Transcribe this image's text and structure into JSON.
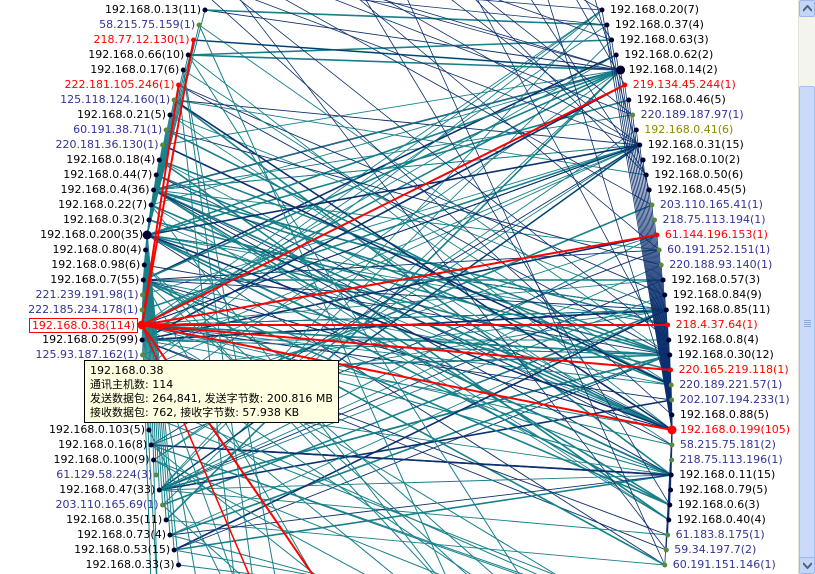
{
  "colors": {
    "edge": "#17808a",
    "edge_dark": "#0c2f6e",
    "highlight": "#ff0000",
    "label_local": "#000000",
    "label_remote": "#333399",
    "label_alert": "#ff0000",
    "label_olive": "#8a8a00",
    "node_dark": "#000033",
    "node_green": "#5a8a3a"
  },
  "left_nodes": [
    {
      "label": "192.168.0.13(11)",
      "color": "label_local"
    },
    {
      "label": "58.215.75.159(1)",
      "color": "label_remote"
    },
    {
      "label": "218.77.12.130(1)",
      "color": "label_alert"
    },
    {
      "label": "192.168.0.66(10)",
      "color": "label_local"
    },
    {
      "label": "192.168.0.17(6)",
      "color": "label_local"
    },
    {
      "label": "222.181.105.246(1)",
      "color": "label_alert"
    },
    {
      "label": "125.118.124.160(1)",
      "color": "label_remote"
    },
    {
      "label": "192.168.0.21(5)",
      "color": "label_local"
    },
    {
      "label": "60.191.38.71(1)",
      "color": "label_remote"
    },
    {
      "label": "220.181.36.130(1)",
      "color": "label_remote"
    },
    {
      "label": "192.168.0.18(4)",
      "color": "label_local"
    },
    {
      "label": "192.168.0.44(7)",
      "color": "label_local"
    },
    {
      "label": "192.168.0.4(36)",
      "color": "label_local"
    },
    {
      "label": "192.168.0.22(7)",
      "color": "label_local"
    },
    {
      "label": "192.168.0.3(2)",
      "color": "label_local"
    },
    {
      "label": "192.168.0.200(35)",
      "color": "label_local"
    },
    {
      "label": "192.168.0.80(4)",
      "color": "label_local"
    },
    {
      "label": "192.168.0.98(6)",
      "color": "label_local"
    },
    {
      "label": "192.168.0.7(55)",
      "color": "label_local"
    },
    {
      "label": "221.239.191.98(1)",
      "color": "label_remote"
    },
    {
      "label": "222.185.234.178(1)",
      "color": "label_remote"
    },
    {
      "label": "192.168.0.38(114)",
      "color": "label_alert",
      "boxed": true
    },
    {
      "label": "192.168.0.25(99)",
      "color": "label_local"
    },
    {
      "label": "125.93.187.162(1)",
      "color": "label_remote"
    },
    {
      "label": "222.73.1",
      "color": "label_remote"
    },
    {
      "label": "192.168.0",
      "color": "label_local"
    },
    {
      "label": "60.181.8",
      "color": "label_remote"
    },
    {
      "label": "218.92.18",
      "color": "label_remote"
    },
    {
      "label": "192.168.0.103(5)",
      "color": "label_local"
    },
    {
      "label": "192.168.0.16(8)",
      "color": "label_local"
    },
    {
      "label": "192.168.0.100(9)",
      "color": "label_local"
    },
    {
      "label": "61.129.58.224(3)",
      "color": "label_remote"
    },
    {
      "label": "192.168.0.47(33)",
      "color": "label_local"
    },
    {
      "label": "203.110.165.69(1)",
      "color": "label_remote"
    },
    {
      "label": "192.168.0.35(11)",
      "color": "label_local"
    },
    {
      "label": "192.168.0.73(4)",
      "color": "label_local"
    },
    {
      "label": "192.168.0.53(15)",
      "color": "label_local"
    },
    {
      "label": "192.168.0.33(3)",
      "color": "label_local"
    }
  ],
  "right_nodes": [
    {
      "label": "192.168.0.20(7)",
      "color": "label_local"
    },
    {
      "label": "192.168.0.37(4)",
      "color": "label_local"
    },
    {
      "label": "192.168.0.63(3)",
      "color": "label_local"
    },
    {
      "label": "192.168.0.62(2)",
      "color": "label_local"
    },
    {
      "label": "192.168.0.14(2)",
      "color": "label_local"
    },
    {
      "label": "219.134.45.244(1)",
      "color": "label_alert"
    },
    {
      "label": "192.168.0.46(5)",
      "color": "label_local"
    },
    {
      "label": "220.189.187.97(1)",
      "color": "label_remote"
    },
    {
      "label": "192.168.0.41(6)",
      "color": "label_olive"
    },
    {
      "label": "192.168.0.31(15)",
      "color": "label_local"
    },
    {
      "label": "192.168.0.10(2)",
      "color": "label_local"
    },
    {
      "label": "192.168.0.50(6)",
      "color": "label_local"
    },
    {
      "label": "192.168.0.45(5)",
      "color": "label_local"
    },
    {
      "label": "203.110.165.41(1)",
      "color": "label_remote"
    },
    {
      "label": "218.75.113.194(1)",
      "color": "label_remote"
    },
    {
      "label": "61.144.196.153(1)",
      "color": "label_alert"
    },
    {
      "label": "60.191.252.151(1)",
      "color": "label_remote"
    },
    {
      "label": "220.188.93.140(1)",
      "color": "label_remote"
    },
    {
      "label": "192.168.0.57(3)",
      "color": "label_local"
    },
    {
      "label": "192.168.0.84(9)",
      "color": "label_local"
    },
    {
      "label": "192.168.0.85(11)",
      "color": "label_local"
    },
    {
      "label": "218.4.37.64(1)",
      "color": "label_alert"
    },
    {
      "label": "192.168.0.8(4)",
      "color": "label_local"
    },
    {
      "label": "192.168.0.30(12)",
      "color": "label_local"
    },
    {
      "label": "220.165.219.118(1)",
      "color": "label_alert"
    },
    {
      "label": "220.189.221.57(1)",
      "color": "label_remote"
    },
    {
      "label": "202.107.194.233(1)",
      "color": "label_remote"
    },
    {
      "label": "192.168.0.88(5)",
      "color": "label_local"
    },
    {
      "label": "192.168.0.199(105)",
      "color": "label_alert"
    },
    {
      "label": "58.215.75.181(2)",
      "color": "label_remote"
    },
    {
      "label": "218.75.113.196(1)",
      "color": "label_remote"
    },
    {
      "label": "192.168.0.11(15)",
      "color": "label_local"
    },
    {
      "label": "192.168.0.79(5)",
      "color": "label_local"
    },
    {
      "label": "192.168.0.6(3)",
      "color": "label_local"
    },
    {
      "label": "192.168.0.40(4)",
      "color": "label_local"
    },
    {
      "label": "61.183.8.175(1)",
      "color": "label_remote"
    },
    {
      "label": "59.34.197.7(2)",
      "color": "label_remote"
    },
    {
      "label": "60.191.151.146(1)",
      "color": "label_remote"
    }
  ],
  "tooltip": {
    "line1": "192.168.0.38",
    "line2": "通讯主机数: 114",
    "line3": "发送数据包: 264,841, 发送字节数: 200.816 MB",
    "line4": "接收数据包: 762, 接收字节数: 57.938 KB"
  },
  "scrollbar": {
    "up_icon": "scroll-up-arrow-icon",
    "down_icon": "scroll-down-arrow-icon"
  }
}
